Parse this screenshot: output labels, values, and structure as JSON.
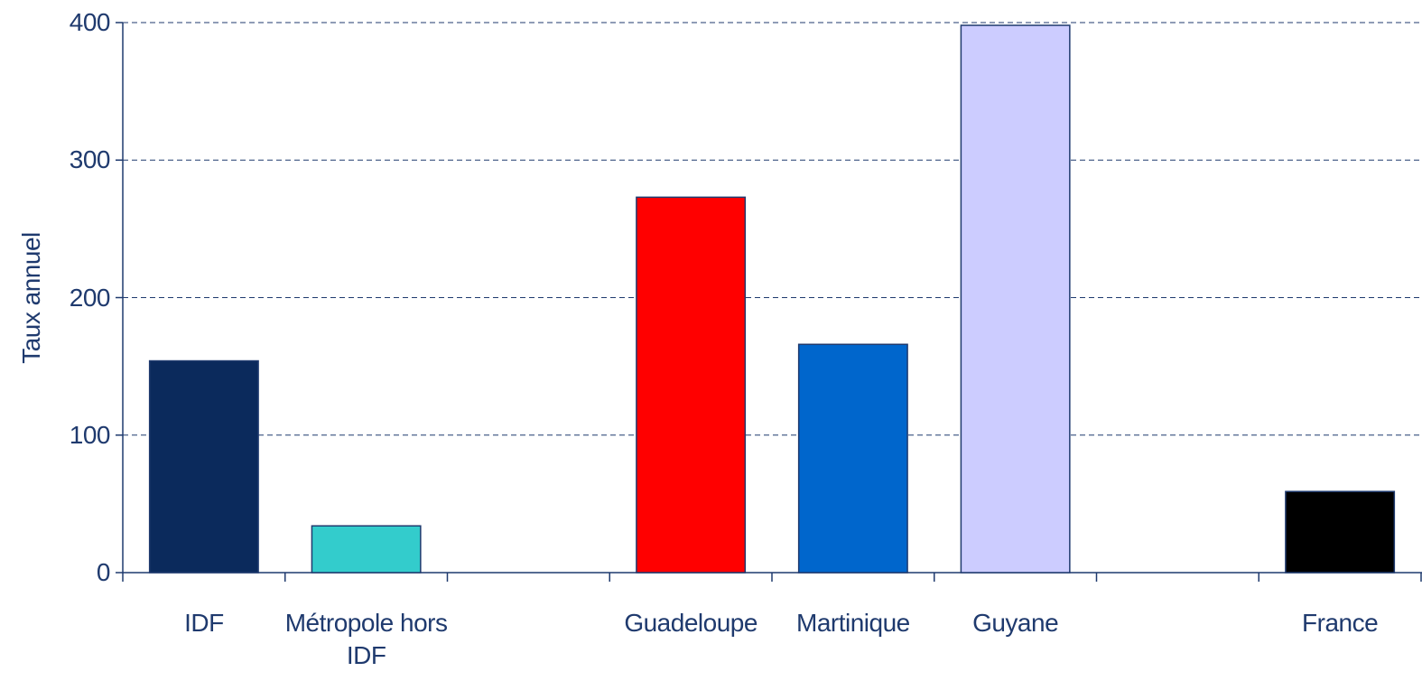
{
  "chart_data": {
    "type": "bar",
    "y_label": "Taux annuel",
    "categories": [
      "IDF",
      "Métropole hors IDF",
      null,
      "Guadeloupe",
      "Martinique",
      "Guyane",
      null,
      "France"
    ],
    "values": [
      154,
      34,
      null,
      273,
      166,
      398,
      null,
      59
    ],
    "colors": [
      "#0b2a5c",
      "#33cccc",
      null,
      "#ff0000",
      "#0066cc",
      "#ccccff",
      null,
      "#000000"
    ],
    "ylim": [
      0,
      400
    ],
    "yticks": [
      0,
      100,
      200,
      300,
      400
    ],
    "grid": true
  }
}
